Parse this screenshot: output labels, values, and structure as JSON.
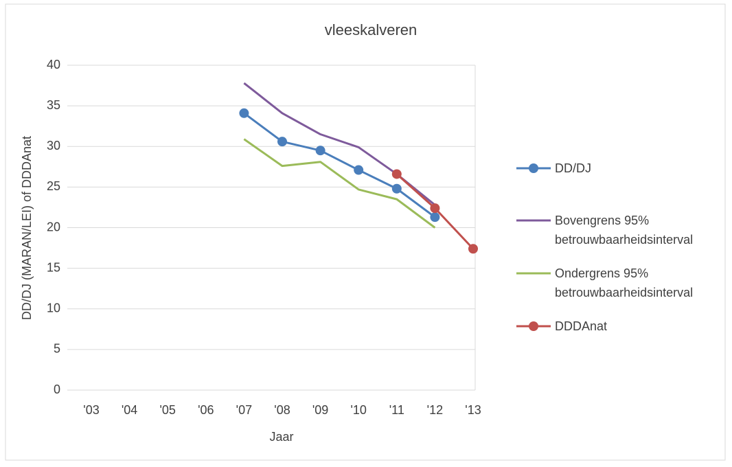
{
  "chart_data": {
    "type": "line",
    "title": "vleeskalveren",
    "x_label": "Jaar",
    "y_label": "DD/DJ (MARAN/LEI) of DDDAnat",
    "categories": [
      "'03",
      "'04",
      "'05",
      "'06",
      "'07",
      "'08",
      "'09",
      "'10",
      "'11",
      "'12",
      "'13"
    ],
    "series": [
      {
        "name": "DD/DJ",
        "color": "#4a7ebb",
        "marker": true,
        "values": [
          null,
          null,
          null,
          null,
          34.1,
          30.6,
          29.5,
          27.1,
          24.8,
          21.3,
          null
        ]
      },
      {
        "name": "Bovengrens 95% betrouwbaarheidsinterval",
        "color": "#7e5a9b",
        "marker": false,
        "values": [
          null,
          null,
          null,
          null,
          37.8,
          34.1,
          31.5,
          29.9,
          26.6,
          22.8,
          null
        ]
      },
      {
        "name": "Ondergrens 95% betrouwbaarheidsinterval",
        "color": "#9bbb59",
        "marker": false,
        "values": [
          null,
          null,
          null,
          null,
          30.9,
          27.6,
          28.1,
          24.7,
          23.5,
          20.0,
          null
        ]
      },
      {
        "name": "DDDAnat",
        "color": "#c0504d",
        "marker": true,
        "values": [
          null,
          null,
          null,
          null,
          null,
          null,
          null,
          null,
          26.6,
          22.4,
          17.4
        ]
      }
    ],
    "ylim": [
      0,
      40
    ],
    "yticks": [
      0,
      5,
      10,
      15,
      20,
      25,
      30,
      35,
      40
    ],
    "grid": true,
    "legend": "right"
  }
}
